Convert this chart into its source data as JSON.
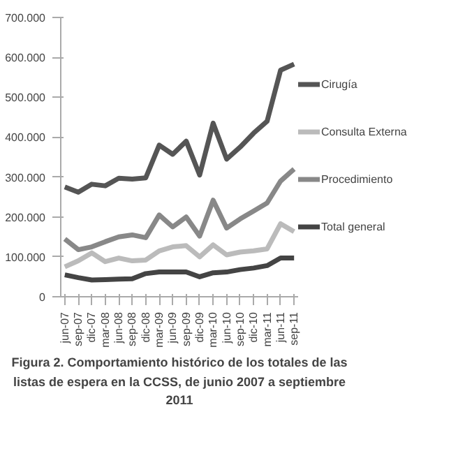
{
  "chart_data": {
    "type": "line",
    "title": "Figura 2. Comportamiento histórico de los totales de las listas de espera en la CCSS, de junio 2007 a septiembre 2011",
    "categories": [
      "jun-07",
      "sep-07",
      "dic-07",
      "mar-08",
      "jun-08",
      "sep-08",
      "dic-08",
      "mar-09",
      "jun-09",
      "sep-09",
      "dic-09",
      "mar-10",
      "jun-10",
      "sep-10",
      "dic-10",
      "mar-11",
      "jun-11",
      "sep-11"
    ],
    "series": [
      {
        "name": "Cirugía",
        "color": "#555555",
        "values": [
          275000,
          262000,
          282000,
          278000,
          297000,
          295000,
          298000,
          380000,
          357000,
          390000,
          305000,
          435000,
          345000,
          375000,
          410000,
          440000,
          568000,
          583000
        ]
      },
      {
        "name": "Consulta Externa",
        "color": "#bbbbbb",
        "values": [
          75000,
          90000,
          110000,
          88000,
          97000,
          90000,
          92000,
          115000,
          125000,
          128000,
          100000,
          130000,
          105000,
          112000,
          115000,
          120000,
          183000,
          163000
        ]
      },
      {
        "name": "Procedimiento",
        "color": "#888888",
        "values": [
          145000,
          118000,
          125000,
          138000,
          150000,
          155000,
          148000,
          205000,
          175000,
          200000,
          152000,
          242000,
          172000,
          195000,
          215000,
          235000,
          290000,
          320000
        ]
      },
      {
        "name": "Total general",
        "color": "#444444",
        "values": [
          55000,
          48000,
          42000,
          43000,
          44000,
          45000,
          58000,
          62000,
          62000,
          62000,
          50000,
          60000,
          62000,
          68000,
          72000,
          78000,
          97000,
          97000
        ]
      }
    ],
    "ylim": [
      0,
      700000
    ],
    "yticks": [
      0,
      {
        "value": 100000,
        "label": "100.000"
      },
      {
        "value": 200000,
        "label": "200.000"
      },
      {
        "value": 300000,
        "label": "300.000"
      },
      {
        "value": 400000,
        "label": "400.000"
      },
      {
        "value": 500000,
        "label": "500.000"
      },
      {
        "value": 600000,
        "label": "600.000"
      },
      {
        "value": 700000,
        "label": "700.000"
      }
    ],
    "legend": "right"
  }
}
